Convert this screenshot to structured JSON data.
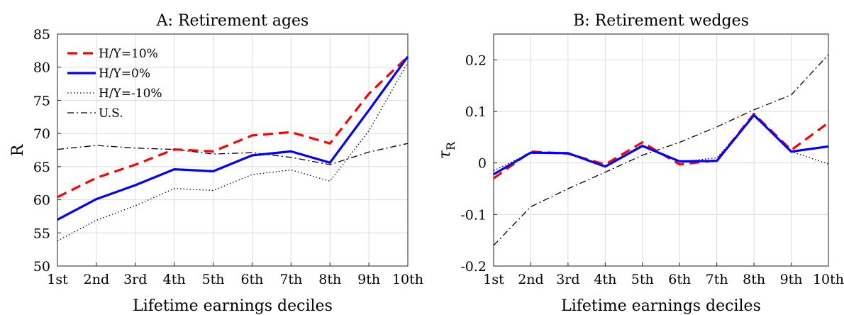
{
  "chart_data": [
    {
      "type": "line",
      "title": "A: Retirement ages",
      "xlabel": "Lifetime earnings deciles",
      "ylabel": "R",
      "categories": [
        "1st",
        "2nd",
        "3rd",
        "4th",
        "5th",
        "6th",
        "7th",
        "8th",
        "9th",
        "10th"
      ],
      "ylim": [
        50,
        85
      ],
      "yticks": [
        "50",
        "55",
        "60",
        "65",
        "70",
        "75",
        "80",
        "85"
      ],
      "yticks_values": [
        50,
        55,
        60,
        65,
        70,
        75,
        80,
        85
      ],
      "grid": true,
      "legend": "top-left",
      "series": [
        {
          "name": "H/Y=10%",
          "color": "#ff0000",
          "style": "dashed",
          "values": [
            60.4,
            63.3,
            65.3,
            67.6,
            67.3,
            69.7,
            70.2,
            68.5,
            76.0,
            81.6
          ]
        },
        {
          "name": "H/Y=0%",
          "color": "#0000ff",
          "style": "solid",
          "values": [
            57.0,
            60.1,
            62.2,
            64.6,
            64.3,
            66.7,
            67.3,
            65.6,
            73.5,
            81.6
          ]
        },
        {
          "name": "H/Y=-10%",
          "color": "#000000",
          "style": "dotted",
          "values": [
            53.8,
            56.9,
            59.1,
            61.7,
            61.4,
            63.8,
            64.5,
            62.8,
            70.4,
            80.7
          ]
        },
        {
          "name": "U.S.",
          "color": "#000000",
          "style": "dashdot",
          "values": [
            67.6,
            68.2,
            67.8,
            67.6,
            66.9,
            67.1,
            66.4,
            65.3,
            67.2,
            68.5
          ]
        }
      ]
    },
    {
      "type": "line",
      "title": "B: Retirement wedges",
      "xlabel": "Lifetime earnings deciles",
      "ylabel": "τR",
      "ylabel_main": "τ",
      "ylabel_sub": "R",
      "categories": [
        "1st",
        "2nd",
        "3rd",
        "4th",
        "5th",
        "6th",
        "7th",
        "8th",
        "9th",
        "10th"
      ],
      "ylim": [
        -0.2,
        0.25
      ],
      "yticks": [
        "-0.2",
        "-0.1",
        "0",
        "0.1",
        "0.2"
      ],
      "yticks_values": [
        -0.2,
        -0.1,
        0,
        0.1,
        0.2
      ],
      "grid": true,
      "series": [
        {
          "name": "H/Y=10%",
          "color": "#ff0000",
          "style": "dashed",
          "values": [
            -0.03,
            0.022,
            0.018,
            -0.003,
            0.04,
            -0.003,
            0.005,
            0.095,
            0.025,
            0.078
          ]
        },
        {
          "name": "H/Y=0%",
          "color": "#0000ff",
          "style": "solid",
          "values": [
            -0.022,
            0.02,
            0.019,
            -0.007,
            0.033,
            0.003,
            0.004,
            0.093,
            0.022,
            0.032
          ]
        },
        {
          "name": "H/Y=-10%",
          "color": "#000000",
          "style": "dotted",
          "values": [
            -0.015,
            0.02,
            0.018,
            -0.005,
            0.035,
            0.002,
            0.01,
            0.09,
            0.022,
            -0.002
          ]
        },
        {
          "name": "U.S.",
          "color": "#000000",
          "style": "dashdot",
          "values": [
            -0.16,
            -0.085,
            -0.05,
            -0.018,
            0.015,
            0.04,
            0.07,
            0.103,
            0.132,
            0.21
          ]
        }
      ]
    }
  ]
}
